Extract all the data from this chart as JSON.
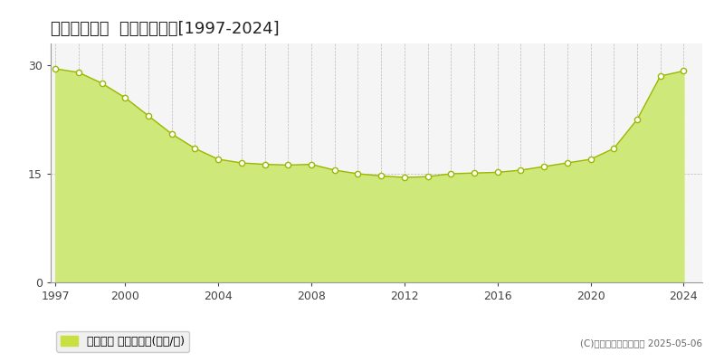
{
  "title": "札幌市手稲区  基準地価推移[1997-2024]",
  "years": [
    1997,
    1998,
    1999,
    2000,
    2001,
    2002,
    2003,
    2004,
    2005,
    2006,
    2007,
    2008,
    2009,
    2010,
    2011,
    2012,
    2013,
    2014,
    2015,
    2016,
    2017,
    2018,
    2019,
    2020,
    2021,
    2022,
    2023,
    2024
  ],
  "values": [
    29.5,
    29.0,
    27.5,
    25.5,
    23.0,
    20.5,
    18.5,
    17.0,
    16.5,
    16.3,
    16.2,
    16.3,
    15.5,
    15.0,
    14.7,
    14.5,
    14.6,
    15.0,
    15.1,
    15.2,
    15.5,
    16.0,
    16.5,
    17.0,
    18.5,
    22.5,
    28.5,
    29.2
  ],
  "fill_color": "#cfe87a",
  "line_color": "#9ab800",
  "marker_facecolor": "#ffffff",
  "marker_edgecolor": "#9ab800",
  "bg_color": "#ffffff",
  "plot_bg_color": "#f5f5f5",
  "grid_color": "#bbbbbb",
  "yticks": [
    0,
    15,
    30
  ],
  "xticks": [
    1997,
    2000,
    2004,
    2008,
    2012,
    2016,
    2020,
    2024
  ],
  "ylim": [
    0,
    33
  ],
  "xlim": [
    1996.8,
    2024.8
  ],
  "legend_label": "基準地価 平均坪単価(万円/坪)",
  "legend_swatch_color": "#c8e040",
  "copyright_text": "(C)土地価格ドットコム 2025-05-06",
  "title_fontsize": 13,
  "tick_fontsize": 9,
  "legend_fontsize": 9,
  "copyright_fontsize": 7.5
}
